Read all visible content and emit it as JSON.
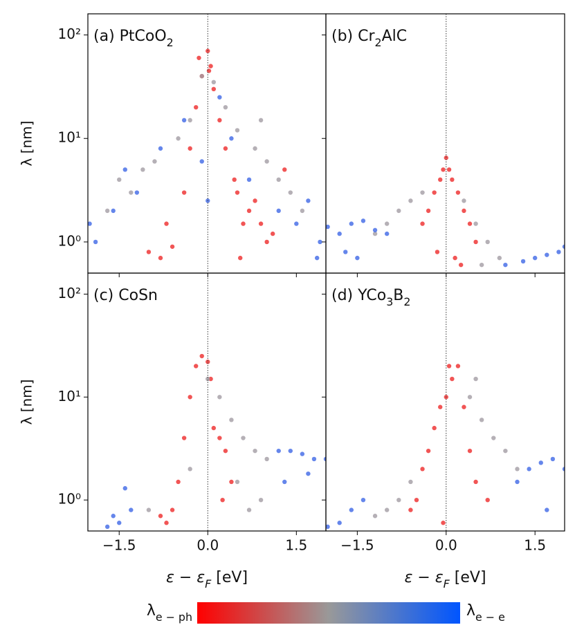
{
  "chart_data": [
    {
      "type": "scatter",
      "title_parts": [
        {
          "text": "(a) PtCoO"
        },
        {
          "text": "2",
          "sub": true
        }
      ],
      "ylabel": "λ [nm]",
      "xlim": [
        -2.03,
        2.0
      ],
      "ylim": [
        0.5,
        160
      ],
      "log_y": true,
      "xticks": [
        {
          "value": -1.5,
          "label": "−1.5"
        },
        {
          "value": 0,
          "label": "0.0"
        },
        {
          "value": 1.5,
          "label": "1.5"
        }
      ],
      "yticks": [
        {
          "value": 1,
          "label": "10⁰"
        },
        {
          "value": 10,
          "label": "10¹"
        },
        {
          "value": 100,
          "label": "10²"
        }
      ],
      "xtick_labels": false,
      "ytick_labels": true,
      "vline": 0,
      "series": [
        {
          "color": "#ee2a2a",
          "x": [
            -0.6,
            -0.8,
            -0.7,
            -1.0,
            -0.4,
            -0.3,
            -0.2,
            -0.1,
            0.0,
            0.05,
            0.1,
            0.2,
            0.3,
            0.5,
            0.6,
            0.7,
            0.8,
            0.9,
            1.0,
            1.1,
            -0.15,
            0.02,
            0.45,
            0.55,
            1.3
          ],
          "values": [
            0.9,
            0.7,
            1.5,
            0.8,
            3,
            8,
            20,
            40,
            70,
            50,
            30,
            15,
            8,
            3,
            1.5,
            2,
            2.5,
            1.5,
            1,
            1.2,
            60,
            45,
            4,
            0.7,
            5
          ]
        },
        {
          "color": "#a39ca4",
          "x": [
            -1.5,
            -1.3,
            -1.1,
            -0.9,
            -0.5,
            -0.3,
            -0.1,
            0.1,
            0.3,
            0.5,
            0.8,
            1.0,
            1.2,
            1.4,
            1.6,
            0.9,
            -1.7
          ],
          "values": [
            4,
            3,
            5,
            6,
            10,
            15,
            40,
            35,
            20,
            12,
            8,
            6,
            4,
            3,
            2,
            15,
            2
          ]
        },
        {
          "color": "#3f68e6",
          "x": [
            -2.0,
            -1.9,
            -1.6,
            -1.4,
            -1.2,
            -0.8,
            -0.4,
            -0.1,
            0.0,
            0.2,
            0.4,
            0.7,
            1.2,
            1.5,
            1.7,
            1.9,
            1.85
          ],
          "values": [
            1.5,
            1,
            2,
            5,
            3,
            8,
            15,
            6,
            2.5,
            25,
            10,
            4,
            2,
            1.5,
            2.5,
            1,
            0.7
          ]
        }
      ]
    },
    {
      "type": "scatter",
      "title_parts": [
        {
          "text": "(b) Cr"
        },
        {
          "text": "2",
          "sub": true
        },
        {
          "text": "AlC"
        }
      ],
      "xlim": [
        -2.03,
        2.0
      ],
      "ylim": [
        0.5,
        160
      ],
      "log_y": true,
      "xticks": [
        -1.5,
        0,
        1.5
      ],
      "yticks": [
        1,
        10,
        100
      ],
      "xtick_labels": false,
      "ytick_labels": false,
      "vline": 0,
      "series": [
        {
          "color": "#ee2a2a",
          "x": [
            -0.3,
            -0.2,
            -0.1,
            -0.05,
            0,
            0.05,
            0.1,
            0.2,
            0.3,
            0.4,
            0.15,
            -0.15,
            0.25,
            -0.4,
            0.5
          ],
          "values": [
            2,
            3,
            4,
            5,
            6.5,
            5,
            4,
            3,
            2,
            1.5,
            0.7,
            0.8,
            0.6,
            1.5,
            1
          ]
        },
        {
          "color": "#a39ca4",
          "x": [
            -1.0,
            -0.8,
            -0.6,
            -0.4,
            0.3,
            0.5,
            0.7,
            0.9,
            -1.2,
            0.6
          ],
          "values": [
            1.5,
            2,
            2.5,
            3,
            2.5,
            1.5,
            1,
            0.7,
            1.2,
            0.6
          ]
        },
        {
          "color": "#3f68e6",
          "x": [
            -2.0,
            -1.8,
            -1.6,
            -1.4,
            -1.2,
            -1.0,
            -1.7,
            1.0,
            1.3,
            1.5,
            1.7,
            1.9,
            2.0,
            -1.5
          ],
          "values": [
            1.4,
            1.2,
            1.5,
            1.6,
            1.3,
            1.2,
            0.8,
            0.6,
            0.65,
            0.7,
            0.75,
            0.8,
            0.9,
            0.7
          ]
        }
      ]
    },
    {
      "type": "scatter",
      "title_parts": [
        {
          "text": "(c) CoSn"
        }
      ],
      "ylabel": "λ [nm]",
      "xlabel_parts": [
        {
          "text": "ε − ε"
        },
        {
          "text": "F",
          "sub": true
        },
        {
          "text": " [eV]",
          "upright": true
        }
      ],
      "xlim": [
        -2.03,
        2.0
      ],
      "ylim": [
        0.5,
        160
      ],
      "log_y": true,
      "xticks": [
        {
          "value": -1.5,
          "label": "−1.5"
        },
        {
          "value": 0,
          "label": "0.0"
        },
        {
          "value": 1.5,
          "label": "1.5"
        }
      ],
      "yticks": [
        {
          "value": 1,
          "label": "10⁰"
        },
        {
          "value": 10,
          "label": "10¹"
        },
        {
          "value": 100,
          "label": "10²"
        }
      ],
      "xtick_labels": true,
      "ytick_labels": true,
      "vline": 0,
      "series": [
        {
          "color": "#ee2a2a",
          "x": [
            -0.7,
            -0.6,
            -0.5,
            -0.4,
            -0.3,
            -0.2,
            -0.1,
            0,
            0.05,
            0.1,
            0.2,
            0.3,
            0.4,
            -0.8,
            0.25
          ],
          "values": [
            0.6,
            0.8,
            1.5,
            4,
            10,
            20,
            25,
            22,
            15,
            5,
            4,
            3,
            1.5,
            0.7,
            1
          ]
        },
        {
          "color": "#a39ca4",
          "x": [
            -0.3,
            0,
            0.2,
            0.4,
            0.6,
            0.8,
            1.0,
            0.5,
            0.7,
            0.9,
            -1.0
          ],
          "values": [
            2,
            15,
            10,
            6,
            4,
            3,
            2.5,
            1.5,
            0.8,
            1,
            0.8
          ]
        },
        {
          "color": "#3f68e6",
          "x": [
            -1.4,
            -1.3,
            -1.5,
            -1.6,
            -1.7,
            1.2,
            1.4,
            1.6,
            1.8,
            2.0,
            1.3,
            1.7
          ],
          "values": [
            1.3,
            0.8,
            0.6,
            0.7,
            0.55,
            3,
            3,
            2.8,
            2.5,
            2.5,
            1.5,
            1.8
          ]
        }
      ]
    },
    {
      "type": "scatter",
      "title_parts": [
        {
          "text": "(d) YCo"
        },
        {
          "text": "3",
          "sub": true
        },
        {
          "text": "B"
        },
        {
          "text": "2",
          "sub": true
        }
      ],
      "xlabel_parts": [
        {
          "text": "ε − ε"
        },
        {
          "text": "F",
          "sub": true
        },
        {
          "text": " [eV]",
          "upright": true
        }
      ],
      "xlim": [
        -2.03,
        2.0
      ],
      "ylim": [
        0.5,
        160
      ],
      "log_y": true,
      "xticks": [
        {
          "value": -1.5,
          "label": "−1.5"
        },
        {
          "value": 0,
          "label": "0.0"
        },
        {
          "value": 1.5,
          "label": "1.5"
        }
      ],
      "yticks": [
        1,
        10,
        100
      ],
      "xtick_labels": true,
      "ytick_labels": false,
      "vline": 0,
      "series": [
        {
          "color": "#ee2a2a",
          "x": [
            -0.5,
            -0.4,
            -0.3,
            -0.2,
            -0.1,
            0,
            0.05,
            0.1,
            0.2,
            0.3,
            0.4,
            0.5,
            -0.6,
            0.7,
            -0.05
          ],
          "values": [
            1,
            2,
            3,
            5,
            8,
            10,
            20,
            15,
            20,
            8,
            3,
            1.5,
            0.8,
            1,
            0.6
          ]
        },
        {
          "color": "#a39ca4",
          "x": [
            -1.0,
            -0.8,
            -0.6,
            0.4,
            0.6,
            0.8,
            1.0,
            1.2,
            0.5,
            -1.2
          ],
          "values": [
            0.8,
            1,
            1.5,
            10,
            6,
            4,
            3,
            2,
            15,
            0.7
          ]
        },
        {
          "color": "#3f68e6",
          "x": [
            -1.8,
            -1.6,
            -1.4,
            -2.0,
            1.4,
            1.6,
            1.8,
            2.0,
            1.2,
            1.7
          ],
          "values": [
            0.6,
            0.8,
            1,
            0.55,
            2,
            2.3,
            2.5,
            2,
            1.5,
            0.8
          ]
        }
      ]
    }
  ],
  "colorbar": {
    "colors": [
      "#ff0000",
      "#999999",
      "#0055ff"
    ],
    "left_label": [
      {
        "text": "λ"
      },
      {
        "text": "e − ph",
        "sub": true
      }
    ],
    "right_label": [
      {
        "text": "λ"
      },
      {
        "text": "e − e",
        "sub": true
      }
    ]
  }
}
